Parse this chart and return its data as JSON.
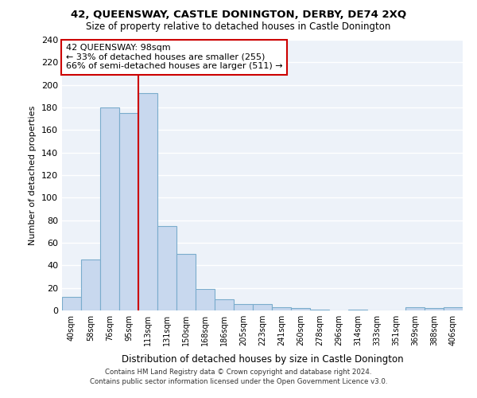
{
  "title1": "42, QUEENSWAY, CASTLE DONINGTON, DERBY, DE74 2XQ",
  "title2": "Size of property relative to detached houses in Castle Donington",
  "xlabel": "Distribution of detached houses by size in Castle Donington",
  "ylabel": "Number of detached properties",
  "categories": [
    "40sqm",
    "58sqm",
    "76sqm",
    "95sqm",
    "113sqm",
    "131sqm",
    "150sqm",
    "168sqm",
    "186sqm",
    "205sqm",
    "223sqm",
    "241sqm",
    "260sqm",
    "278sqm",
    "296sqm",
    "314sqm",
    "333sqm",
    "351sqm",
    "369sqm",
    "388sqm",
    "406sqm"
  ],
  "values": [
    12,
    45,
    180,
    175,
    193,
    75,
    50,
    19,
    10,
    6,
    6,
    3,
    2,
    1,
    0,
    1,
    0,
    0,
    3,
    2,
    3
  ],
  "bar_color": "#c8d8ee",
  "bar_edge_color": "#7aaccc",
  "vline_x_index": 3,
  "vline_color": "#cc0000",
  "annotation_text": "42 QUEENSWAY: 98sqm\n← 33% of detached houses are smaller (255)\n66% of semi-detached houses are larger (511) →",
  "annotation_box_color": "#ffffff",
  "annotation_box_edge": "#cc0000",
  "ylim": [
    0,
    240
  ],
  "yticks": [
    0,
    20,
    40,
    60,
    80,
    100,
    120,
    140,
    160,
    180,
    200,
    220,
    240
  ],
  "footer1": "Contains HM Land Registry data © Crown copyright and database right 2024.",
  "footer2": "Contains public sector information licensed under the Open Government Licence v3.0.",
  "bg_color": "#edf2f9",
  "grid_color": "#ffffff"
}
